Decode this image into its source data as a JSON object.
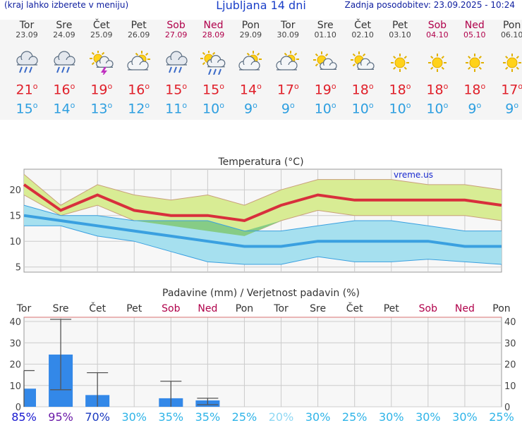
{
  "header": {
    "left_note": "(kraj lahko izberete v meniju)",
    "title": "Ljubljana 14 dni",
    "updated": "Zadnja posodobitev: 23.09.2025 - 10:24"
  },
  "days": [
    {
      "name": "Tor",
      "date": "23.09",
      "weekend": false,
      "icon": "rain-cloud-icon",
      "tmax": "21",
      "tmin": "15"
    },
    {
      "name": "Sre",
      "date": "24.09",
      "weekend": false,
      "icon": "rain-cloud-icon",
      "tmax": "16",
      "tmin": "14"
    },
    {
      "name": "Čet",
      "date": "25.09",
      "weekend": false,
      "icon": "sun-cloud-thunder-icon",
      "tmax": "19",
      "tmin": "13"
    },
    {
      "name": "Pet",
      "date": "26.09",
      "weekend": false,
      "icon": "partly-cloudy-icon",
      "tmax": "16",
      "tmin": "12"
    },
    {
      "name": "Sob",
      "date": "27.09",
      "weekend": true,
      "icon": "rain-cloud-icon",
      "tmax": "15",
      "tmin": "11"
    },
    {
      "name": "Ned",
      "date": "28.09",
      "weekend": true,
      "icon": "sun-cloud-rain-icon",
      "tmax": "15",
      "tmin": "10"
    },
    {
      "name": "Pon",
      "date": "29.09",
      "weekend": false,
      "icon": "partly-cloudy-icon",
      "tmax": "14",
      "tmin": "9"
    },
    {
      "name": "Tor",
      "date": "30.09",
      "weekend": false,
      "icon": "partly-cloudy-icon",
      "tmax": "17",
      "tmin": "9"
    },
    {
      "name": "Sre",
      "date": "01.10",
      "weekend": false,
      "icon": "partly-sunny-icon",
      "tmax": "19",
      "tmin": "10"
    },
    {
      "name": "Čet",
      "date": "02.10",
      "weekend": false,
      "icon": "partly-sunny-icon",
      "tmax": "18",
      "tmin": "10"
    },
    {
      "name": "Pet",
      "date": "03.10",
      "weekend": false,
      "icon": "sun-icon",
      "tmax": "18",
      "tmin": "10"
    },
    {
      "name": "Sob",
      "date": "04.10",
      "weekend": true,
      "icon": "sun-icon",
      "tmax": "18",
      "tmin": "10"
    },
    {
      "name": "Ned",
      "date": "05.10",
      "weekend": true,
      "icon": "sun-icon",
      "tmax": "18",
      "tmin": "9"
    },
    {
      "name": "Pon",
      "date": "06.10",
      "weekend": false,
      "icon": "sun-icon",
      "tmax": "17",
      "tmin": "9"
    }
  ],
  "colors": {
    "max_line": "#d82f3c",
    "max_band": "#d8ec94",
    "min_line": "#3aa0e0",
    "min_band": "#a6e0ef",
    "overlap_band": "#86cc86",
    "bar": "#3388e8",
    "weekend": "#b0004a",
    "grid": "#cccccc"
  },
  "chart_data": [
    {
      "type": "line",
      "title": "Temperatura (°C)",
      "watermark": "vreme.us",
      "ylim": [
        4,
        24
      ],
      "yticks": [
        5,
        10,
        15,
        20
      ],
      "x": [
        "23.09",
        "24.09",
        "25.09",
        "26.09",
        "27.09",
        "28.09",
        "29.09",
        "30.09",
        "01.10",
        "02.10",
        "03.10",
        "04.10",
        "05.10",
        "06.10"
      ],
      "series": [
        {
          "role": "max",
          "values": [
            21,
            16,
            19,
            16,
            15,
            15,
            14,
            17,
            19,
            18,
            18,
            18,
            18,
            17
          ]
        },
        {
          "role": "max_band_high",
          "values": [
            23,
            17,
            21,
            19,
            18,
            19,
            17,
            20,
            22,
            22,
            22,
            21,
            21,
            20
          ]
        },
        {
          "role": "max_band_low",
          "values": [
            19,
            15,
            17,
            14,
            13,
            12,
            11,
            14,
            16,
            15,
            15,
            15,
            15,
            14
          ]
        },
        {
          "role": "min",
          "values": [
            15,
            14,
            13,
            12,
            11,
            10,
            9,
            9,
            10,
            10,
            10,
            10,
            9,
            9
          ]
        },
        {
          "role": "min_band_high",
          "values": [
            17,
            15,
            15,
            14,
            14,
            14,
            12,
            12,
            13,
            14,
            14,
            13,
            12,
            12
          ]
        },
        {
          "role": "min_band_low",
          "values": [
            13,
            13,
            11,
            10,
            8,
            6,
            5.5,
            5.5,
            7,
            6,
            6,
            6.5,
            6,
            5.5
          ]
        }
      ]
    },
    {
      "type": "bar",
      "title": "Padavine (mm) / Verjetnost padavin (%)",
      "ylim": [
        0,
        42
      ],
      "yticks": [
        0,
        10,
        20,
        30,
        40
      ],
      "categories": [
        "Tor",
        "Sre",
        "Čet",
        "Pet",
        "Sob",
        "Ned",
        "Pon",
        "Tor",
        "Sre",
        "Čet",
        "Pet",
        "Sob",
        "Ned",
        "Pon"
      ],
      "weekend": [
        false,
        false,
        false,
        false,
        true,
        true,
        false,
        false,
        false,
        false,
        false,
        true,
        true,
        false
      ],
      "values": [
        8.5,
        24.5,
        5.5,
        0,
        4,
        3,
        0,
        0,
        0,
        0,
        0,
        0,
        0,
        0
      ],
      "range_low": [
        0,
        8,
        0,
        0,
        0,
        1,
        0,
        0,
        0,
        0,
        0,
        0,
        0,
        0
      ],
      "range_high": [
        17,
        41,
        16,
        0,
        12,
        4,
        0,
        0,
        0,
        0,
        0,
        0,
        0,
        0
      ],
      "probability": [
        "85%",
        "95%",
        "70%",
        "30%",
        "35%",
        "35%",
        "25%",
        "20%",
        "30%",
        "25%",
        "30%",
        "30%",
        "30%",
        "25%"
      ],
      "probability_colors": [
        "#1818d0",
        "#6a1aa8",
        "#1a3ac0",
        "#2fb4e8",
        "#2fb4e8",
        "#2fb4e8",
        "#2fb4e8",
        "#8fd8f4",
        "#2fb4e8",
        "#2fb4e8",
        "#2fb4e8",
        "#2fb4e8",
        "#2fb4e8",
        "#2fb4e8"
      ]
    }
  ]
}
